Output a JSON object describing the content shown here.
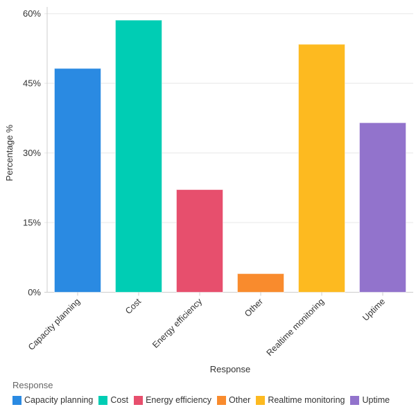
{
  "chart_data": {
    "type": "bar",
    "categories": [
      "Capacity planning",
      "Cost",
      "Energy efficiency",
      "Other",
      "Realtime monitoring",
      "Uptime"
    ],
    "values": [
      48.2,
      58.6,
      22.1,
      4.0,
      53.4,
      36.5
    ],
    "colors": [
      "#2a8ae2",
      "#00cdb4",
      "#e74f6d",
      "#f98b2d",
      "#fdba20",
      "#9273cc"
    ],
    "xlabel": "Response",
    "ylabel": "Percentage %",
    "ylim": [
      0,
      60
    ],
    "yticks": [
      0,
      15,
      30,
      45,
      60
    ],
    "ytick_labels": [
      "0%",
      "15%",
      "30%",
      "45%",
      "60%"
    ],
    "grid": true,
    "legend": {
      "title": "Response",
      "placement": "bottom-left"
    }
  }
}
